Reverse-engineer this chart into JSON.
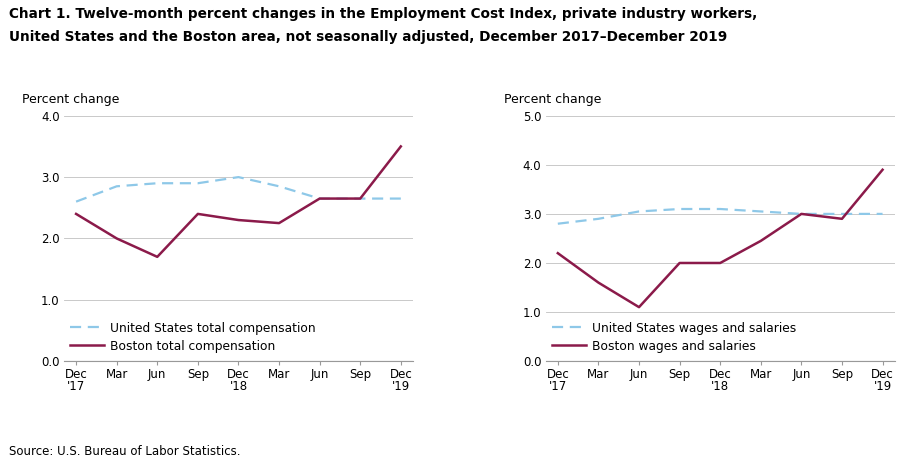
{
  "title_line1": "Chart 1. Twelve-month percent changes in the Employment Cost Index, private industry workers,",
  "title_line2": "United States and the Boston area, not seasonally adjusted, December 2017–December 2019",
  "source": "Source: U.S. Bureau of Labor Statistics.",
  "ylabel": "Percent change",
  "x_labels": [
    "Dec\n'17",
    "Mar",
    "Jun",
    "Sep",
    "Dec\n'18",
    "Mar",
    "Jun",
    "Sep",
    "Dec\n'19"
  ],
  "left_chart": {
    "ylim": [
      0.0,
      4.0
    ],
    "yticks": [
      0.0,
      1.0,
      2.0,
      3.0,
      4.0
    ],
    "us_total_comp": [
      2.6,
      2.85,
      2.9,
      2.9,
      3.0,
      2.85,
      2.65,
      2.65,
      2.65
    ],
    "boston_total_comp": [
      2.4,
      2.0,
      1.7,
      2.4,
      2.3,
      2.25,
      2.65,
      2.65,
      3.5
    ],
    "legend_us": "United States total compensation",
    "legend_boston": "Boston total compensation"
  },
  "right_chart": {
    "ylim": [
      0.0,
      5.0
    ],
    "yticks": [
      0.0,
      1.0,
      2.0,
      3.0,
      4.0,
      5.0
    ],
    "us_wages_salaries": [
      2.8,
      2.9,
      3.05,
      3.1,
      3.1,
      3.05,
      3.0,
      3.0,
      3.0
    ],
    "boston_wages_salaries": [
      2.2,
      1.6,
      1.1,
      2.0,
      2.0,
      2.45,
      3.0,
      2.9,
      3.9
    ],
    "legend_us": "United States wages and salaries",
    "legend_boston": "Boston wages and salaries"
  },
  "us_color": "#8EC8E8",
  "boston_color": "#8B1A4A",
  "grid_color": "#c0c0c0",
  "bg_color": "#ffffff",
  "title_fontsize": 9.8,
  "ylabel_fontsize": 9.0,
  "tick_fontsize": 8.5,
  "legend_fontsize": 8.8,
  "source_fontsize": 8.5
}
